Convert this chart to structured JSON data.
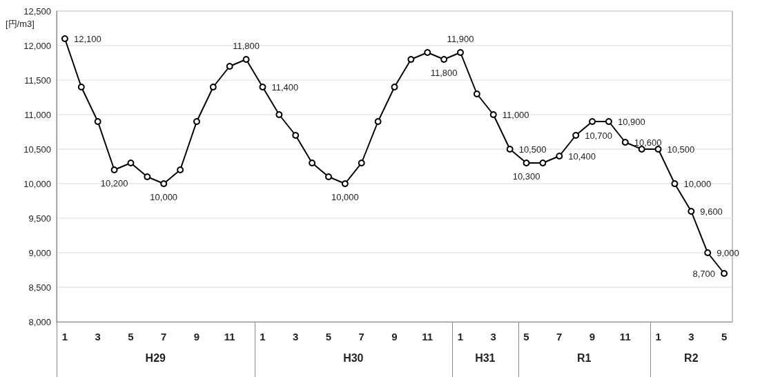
{
  "chart_data": {
    "type": "line",
    "ylabel": "[円/m3]",
    "categories": [
      "1",
      null,
      "3",
      null,
      "5",
      null,
      "7",
      null,
      "9",
      null,
      "11",
      null,
      "1",
      null,
      "3",
      null,
      "5",
      null,
      "7",
      null,
      "9",
      null,
      "11",
      null,
      "1",
      null,
      "3",
      null,
      "5",
      null,
      "7",
      null,
      "9",
      null,
      "11",
      null,
      "1",
      null,
      "3",
      null,
      "5"
    ],
    "series": [
      {
        "color": "#000000",
        "values": [
          12100,
          11400,
          10900,
          10200,
          10300,
          10100,
          10000,
          10200,
          10900,
          11400,
          11700,
          11800,
          11400,
          11000,
          10700,
          10300,
          10100,
          10000,
          10300,
          10900,
          11400,
          11800,
          11900,
          11800,
          11900,
          11300,
          11000,
          10500,
          10300,
          10300,
          10400,
          10700,
          10900,
          10900,
          10600,
          10500,
          10500,
          10000,
          9600,
          9000,
          8700
        ],
        "value_labels": [
          "12,100",
          null,
          null,
          "10,200",
          null,
          null,
          "10,000",
          null,
          null,
          null,
          null,
          "11,800",
          "11,400",
          null,
          null,
          null,
          null,
          "10,000",
          null,
          null,
          null,
          null,
          null,
          "11,800",
          "11,900",
          null,
          "11,000",
          "10,500",
          "10,300",
          null,
          "10,400",
          "10,700",
          null,
          "10,900",
          "10,600",
          null,
          "10,500",
          "10,000",
          "9,600",
          "9,000",
          "8,700"
        ]
      }
    ],
    "ylim": [
      8000,
      12500
    ],
    "yticks": [
      {
        "value": 8000,
        "label": "8,000"
      },
      {
        "value": 8500,
        "label": "8,500"
      },
      {
        "value": 9000,
        "label": "9,000"
      },
      {
        "value": 9500,
        "label": "9,500"
      },
      {
        "value": 10000,
        "label": "10,000"
      },
      {
        "value": 10500,
        "label": "10,500"
      },
      {
        "value": 11000,
        "label": "11,000"
      },
      {
        "value": 11500,
        "label": "11,500"
      },
      {
        "value": 12000,
        "label": "12,000"
      },
      {
        "value": 12500,
        "label": "12,500"
      }
    ],
    "grid": "y",
    "marker": "circle",
    "line_style": "solid",
    "annotations": [
      "H29",
      "H30",
      "H31",
      "R1",
      "R2"
    ]
  }
}
